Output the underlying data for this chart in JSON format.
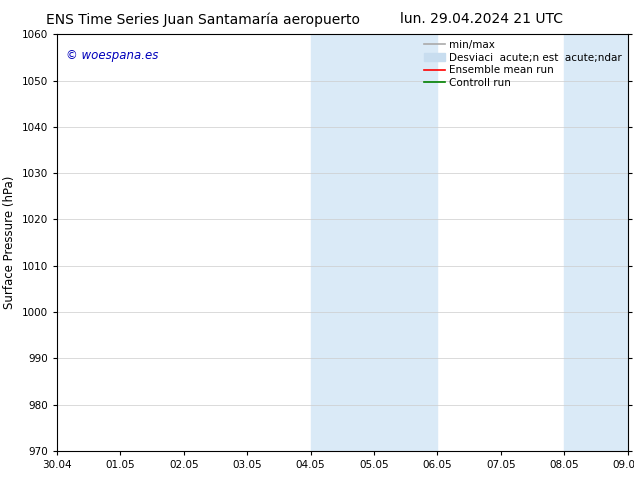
{
  "title_left": "ENS Time Series Juan Santamaría aeropuerto",
  "title_right": "lun. 29.04.2024 21 UTC",
  "ylabel": "Surface Pressure (hPa)",
  "ylim": [
    970,
    1060
  ],
  "yticks": [
    970,
    980,
    990,
    1000,
    1010,
    1020,
    1030,
    1040,
    1050,
    1060
  ],
  "xtick_labels": [
    "30.04",
    "01.05",
    "02.05",
    "03.05",
    "04.05",
    "05.05",
    "06.05",
    "07.05",
    "08.05",
    "09.05"
  ],
  "xtick_positions": [
    0,
    1,
    2,
    3,
    4,
    5,
    6,
    7,
    8,
    9
  ],
  "shaded_band1_xmin": 4,
  "shaded_band1_xmax": 6,
  "shaded_band2_xmin": 8,
  "shaded_band2_xmax": 9,
  "shaded_color": "#daeaf7",
  "watermark_text": "© woespana.es",
  "watermark_color": "#0000bb",
  "legend_label1": "min/max",
  "legend_label2": "Desviaci  acute;n est  acute;ndar",
  "legend_label3": "Ensemble mean run",
  "legend_label4": "Controll run",
  "legend_color1": "#aaaaaa",
  "legend_color2": "#c8ddef",
  "legend_color3": "#ff0000",
  "legend_color4": "#008000",
  "bg_color": "#ffffff",
  "grid_color": "#cccccc",
  "title_fontsize": 10,
  "tick_fontsize": 7.5,
  "ylabel_fontsize": 8.5,
  "legend_fontsize": 7.5,
  "watermark_fontsize": 8.5
}
